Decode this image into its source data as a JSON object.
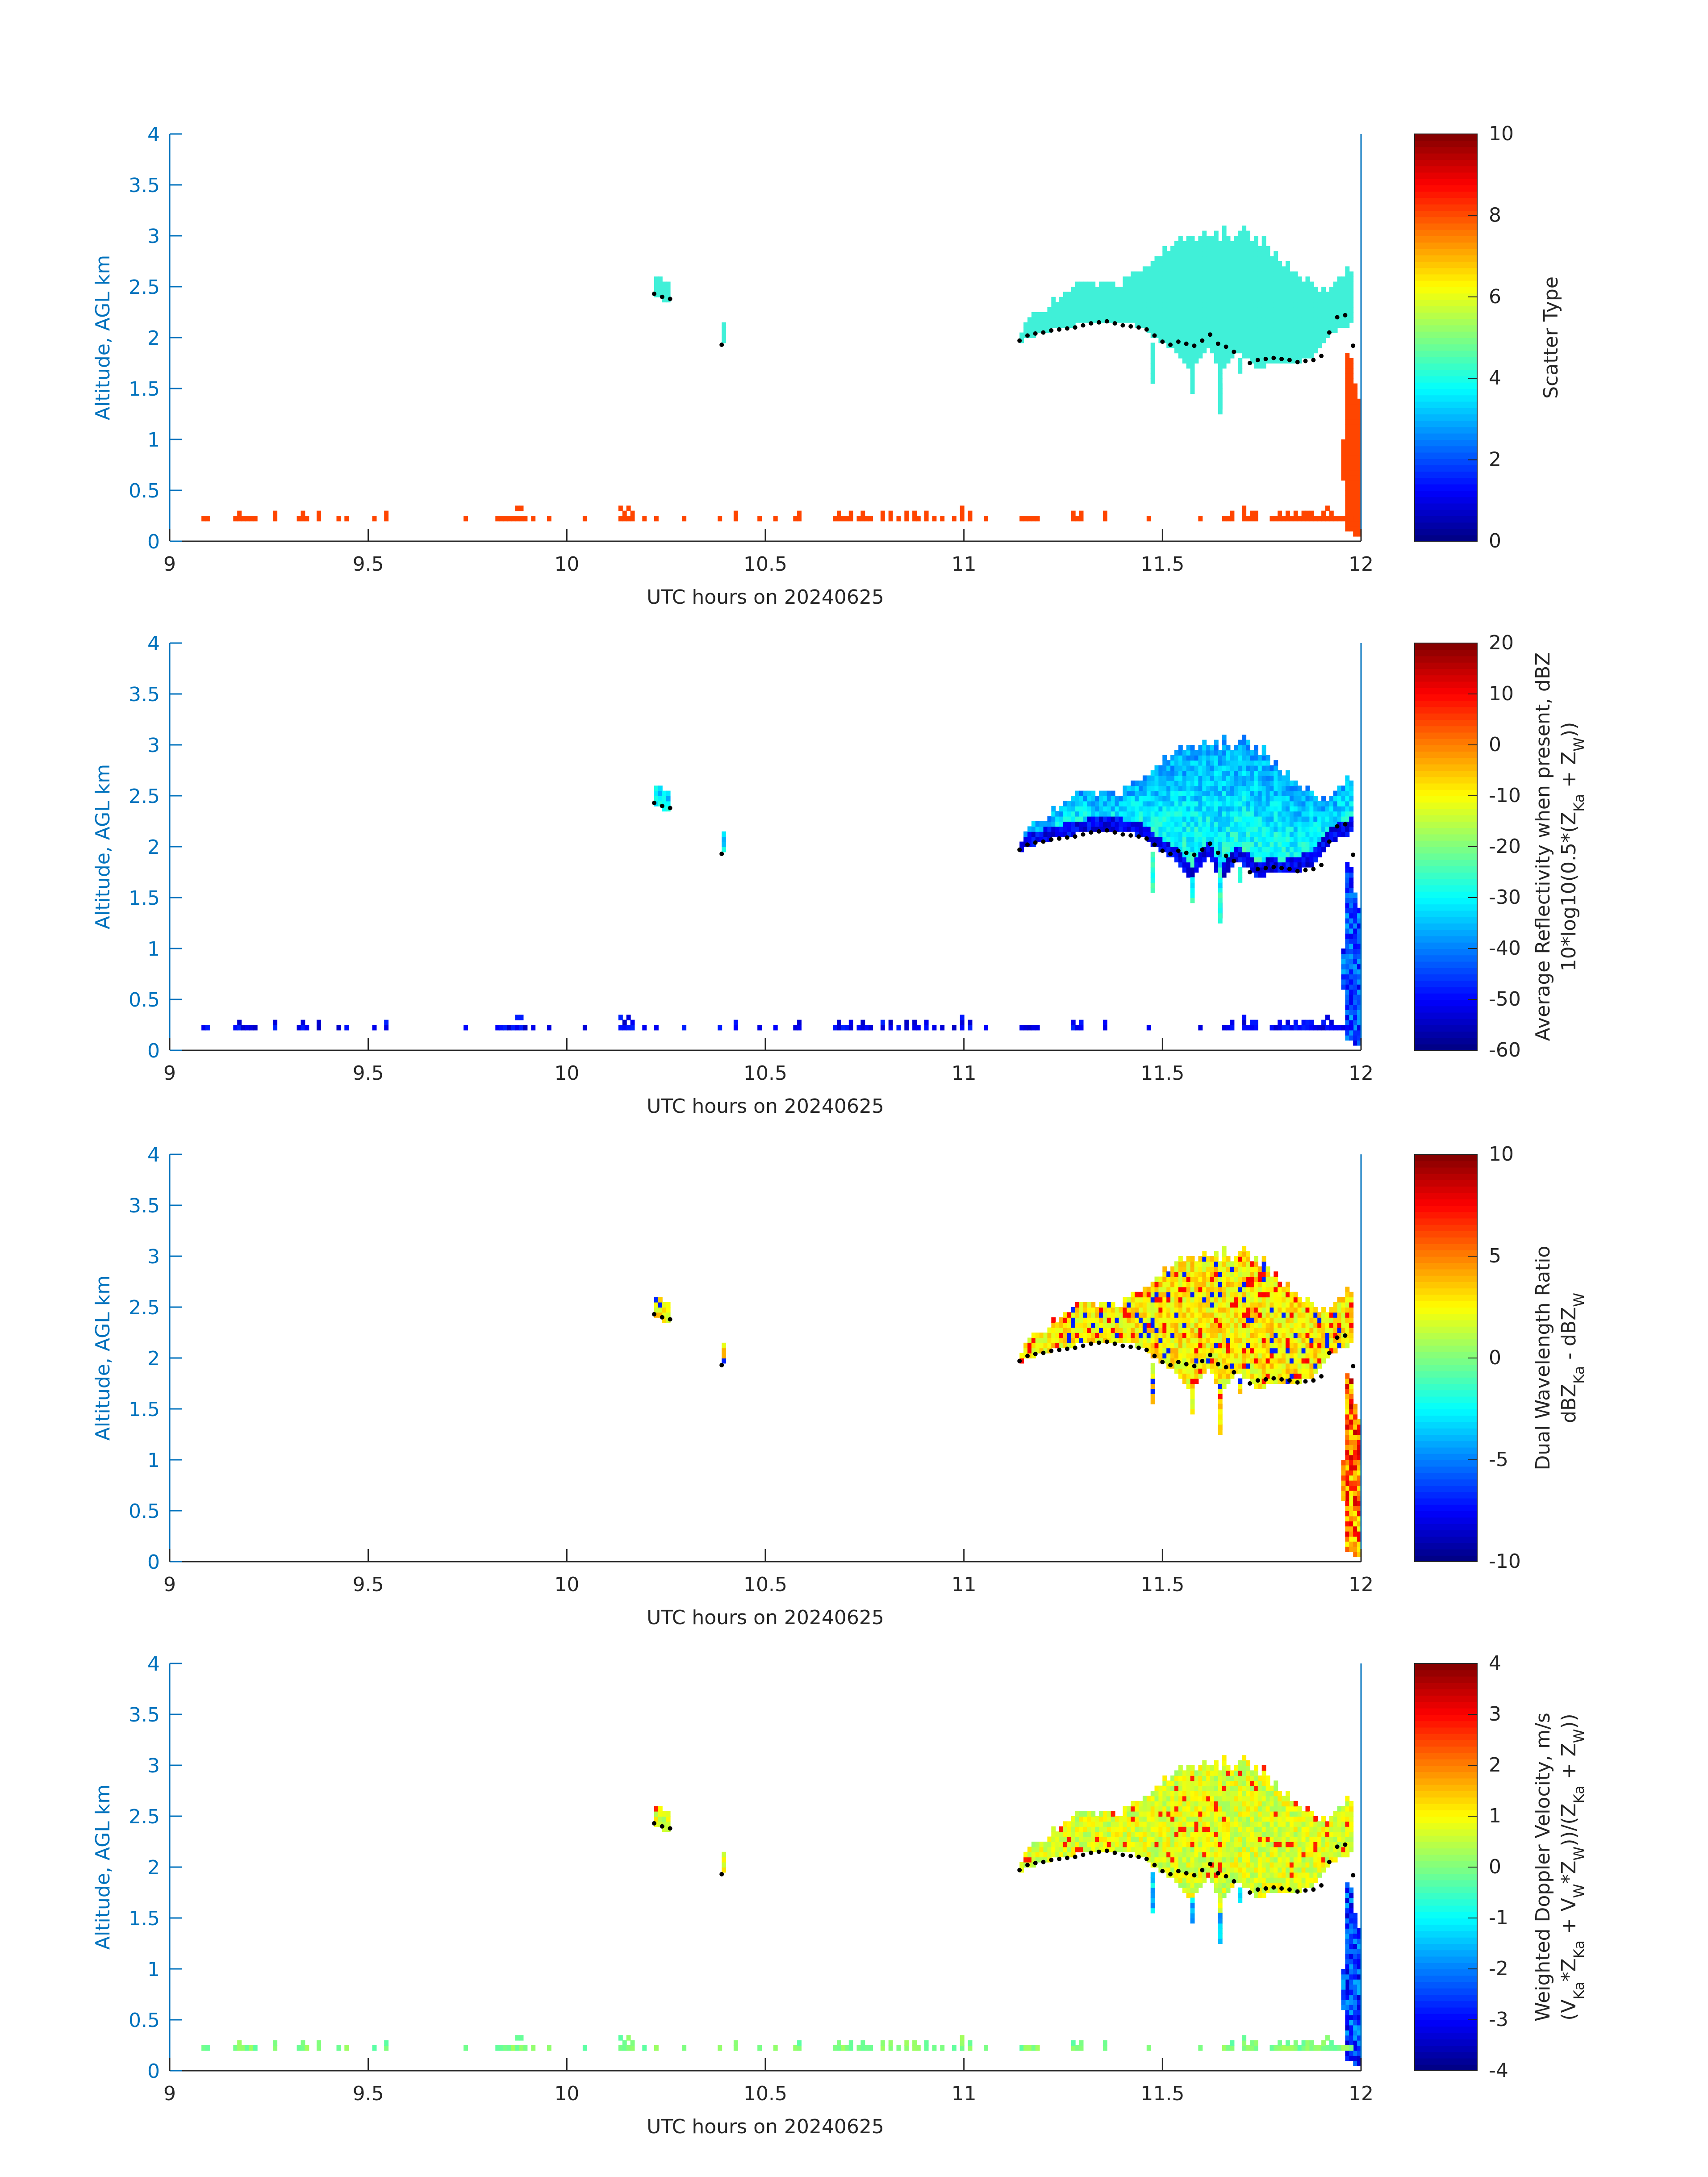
{
  "colors": {
    "axis_blue": "#0072bd",
    "scatter_liquid": "#ff4500",
    "scatter_ice": "#40f0d8",
    "marker": "#000000"
  },
  "colormap": "jet",
  "chart_data": [
    {
      "type": "heatmap",
      "panel": 1,
      "xlabel": "UTC hours on 20240625",
      "ylabel": "Altitude, AGL km",
      "xlim": [
        9,
        12
      ],
      "ylim": [
        0,
        4
      ],
      "xticks": [
        "9",
        "9.5",
        "10",
        "10.5",
        "11",
        "11.5",
        "12"
      ],
      "yticks": [
        "0",
        "0.5",
        "1",
        "1.5",
        "2",
        "2.5",
        "3",
        "3.5",
        "4"
      ],
      "colorbar": {
        "label": "Scatter Type",
        "range": [
          0,
          10
        ],
        "ticks": [
          "0",
          "2",
          "4",
          "6",
          "8",
          "10"
        ]
      },
      "field": "scatter_type"
    },
    {
      "type": "heatmap",
      "panel": 2,
      "xlabel": "UTC hours on 20240625",
      "ylabel": "Altitude, AGL km",
      "xlim": [
        9,
        12
      ],
      "ylim": [
        0,
        4
      ],
      "xticks": [
        "9",
        "9.5",
        "10",
        "10.5",
        "11",
        "11.5",
        "12"
      ],
      "yticks": [
        "0",
        "0.5",
        "1",
        "1.5",
        "2",
        "2.5",
        "3",
        "3.5",
        "4"
      ],
      "colorbar": {
        "label_line1": "Average Reflectivity when present, dBZ",
        "label_line2": "10*log10(0.5*(Z",
        "range": [
          -60,
          20
        ],
        "ticks": [
          "-60",
          "-50",
          "-40",
          "-30",
          "-20",
          "-10",
          "0",
          "10",
          "20"
        ]
      },
      "field": "reflectivity"
    },
    {
      "type": "heatmap",
      "panel": 3,
      "xlabel": "UTC hours on 20240625",
      "ylabel": "Altitude, AGL km",
      "xlim": [
        9,
        12
      ],
      "ylim": [
        0,
        4
      ],
      "xticks": [
        "9",
        "9.5",
        "10",
        "10.5",
        "11",
        "11.5",
        "12"
      ],
      "yticks": [
        "0",
        "0.5",
        "1",
        "1.5",
        "2",
        "2.5",
        "3",
        "3.5",
        "4"
      ],
      "colorbar": {
        "label_line1": "Dual Wavelength Ratio",
        "label_line2": "dBZ",
        "range": [
          -10,
          10
        ],
        "ticks": [
          "-10",
          "-5",
          "0",
          "5",
          "10"
        ]
      },
      "field": "dwr"
    },
    {
      "type": "heatmap",
      "panel": 4,
      "xlabel": "UTC hours on 20240625",
      "ylabel": "Altitude, AGL km",
      "xlim": [
        9,
        12
      ],
      "ylim": [
        0,
        4
      ],
      "xticks": [
        "9",
        "9.5",
        "10",
        "10.5",
        "11",
        "11.5",
        "12"
      ],
      "yticks": [
        "0",
        "0.5",
        "1",
        "1.5",
        "2",
        "2.5",
        "3",
        "3.5",
        "4"
      ],
      "colorbar": {
        "label_line1": "Weighted Doppler Velocity, m/s",
        "label_line2": "(V",
        "range": [
          -4,
          4
        ],
        "ticks": [
          "-4",
          "-3",
          "-2",
          "-1",
          "0",
          "1",
          "2",
          "3",
          "4"
        ]
      },
      "field": "doppler_velocity"
    }
  ],
  "label_parts": {
    "ka": "Ka",
    "w": "W",
    "p2_tail_a": " + Z",
    "p2_tail_b": "))",
    "p3_minus": " - dBZ",
    "p4_a": "*Z",
    "p4_b": " + V",
    "p4_c": "*Z",
    "p4_d": "))/(Z",
    "p4_e": " + Z",
    "p4_f": "))"
  },
  "cloud_data": {
    "dx_hours": 0.01,
    "dy_km": 0.1,
    "cloud_columns": [
      [
        11.14,
        1.95,
        2.05
      ],
      [
        11.15,
        1.97,
        2.1
      ],
      [
        11.16,
        2.0,
        2.15
      ],
      [
        11.17,
        2.0,
        2.2
      ],
      [
        11.18,
        2.02,
        2.2
      ],
      [
        11.19,
        2.02,
        2.2
      ],
      [
        11.2,
        2.05,
        2.2
      ],
      [
        11.21,
        2.05,
        2.25
      ],
      [
        11.22,
        2.08,
        2.35
      ],
      [
        11.23,
        2.08,
        2.3
      ],
      [
        11.24,
        2.08,
        2.35
      ],
      [
        11.25,
        2.1,
        2.4
      ],
      [
        11.26,
        2.1,
        2.4
      ],
      [
        11.27,
        2.1,
        2.45
      ],
      [
        11.28,
        2.12,
        2.5
      ],
      [
        11.29,
        2.12,
        2.5
      ],
      [
        11.3,
        2.12,
        2.5
      ],
      [
        11.31,
        2.14,
        2.5
      ],
      [
        11.32,
        2.14,
        2.5
      ],
      [
        11.33,
        2.15,
        2.45
      ],
      [
        11.34,
        2.15,
        2.5
      ],
      [
        11.35,
        2.15,
        2.5
      ],
      [
        11.36,
        2.15,
        2.5
      ],
      [
        11.37,
        2.15,
        2.5
      ],
      [
        11.38,
        2.15,
        2.45
      ],
      [
        11.39,
        2.15,
        2.45
      ],
      [
        11.4,
        2.12,
        2.55
      ],
      [
        11.41,
        2.12,
        2.55
      ],
      [
        11.42,
        2.12,
        2.6
      ],
      [
        11.43,
        2.1,
        2.6
      ],
      [
        11.44,
        2.1,
        2.6
      ],
      [
        11.45,
        2.08,
        2.65
      ],
      [
        11.46,
        2.05,
        2.65
      ],
      [
        11.47,
        2.0,
        2.7
      ],
      [
        11.48,
        1.98,
        2.75
      ],
      [
        11.49,
        1.95,
        2.75
      ],
      [
        11.5,
        1.92,
        2.85
      ],
      [
        11.51,
        1.9,
        2.8
      ],
      [
        11.52,
        1.88,
        2.85
      ],
      [
        11.53,
        1.85,
        2.9
      ],
      [
        11.54,
        1.8,
        2.95
      ],
      [
        11.55,
        1.75,
        2.9
      ],
      [
        11.56,
        1.7,
        2.95
      ],
      [
        11.57,
        1.65,
        2.95
      ],
      [
        11.58,
        1.75,
        2.9
      ],
      [
        11.59,
        1.8,
        2.95
      ],
      [
        11.6,
        1.85,
        3.0
      ],
      [
        11.61,
        1.9,
        2.95
      ],
      [
        11.62,
        1.85,
        2.95
      ],
      [
        11.63,
        1.75,
        3.0
      ],
      [
        11.64,
        1.3,
        2.9
      ],
      [
        11.65,
        1.7,
        3.05
      ],
      [
        11.66,
        1.75,
        2.95
      ],
      [
        11.67,
        1.8,
        2.9
      ],
      [
        11.68,
        1.85,
        2.95
      ],
      [
        11.69,
        1.85,
        3.0
      ],
      [
        11.7,
        1.8,
        3.05
      ],
      [
        11.71,
        1.8,
        3.0
      ],
      [
        11.72,
        1.75,
        2.9
      ],
      [
        11.73,
        1.7,
        2.95
      ],
      [
        11.74,
        1.7,
        2.85
      ],
      [
        11.75,
        1.7,
        2.95
      ],
      [
        11.76,
        1.75,
        2.85
      ],
      [
        11.77,
        1.75,
        2.75
      ],
      [
        11.78,
        1.75,
        2.8
      ],
      [
        11.79,
        1.72,
        2.7
      ],
      [
        11.8,
        1.72,
        2.65
      ],
      [
        11.81,
        1.75,
        2.7
      ],
      [
        11.82,
        1.75,
        2.6
      ],
      [
        11.83,
        1.75,
        2.6
      ],
      [
        11.84,
        1.75,
        2.55
      ],
      [
        11.85,
        1.78,
        2.5
      ],
      [
        11.86,
        1.78,
        2.55
      ],
      [
        11.87,
        1.8,
        2.5
      ],
      [
        11.88,
        1.85,
        2.45
      ],
      [
        11.89,
        1.9,
        2.4
      ],
      [
        11.9,
        1.95,
        2.45
      ],
      [
        11.91,
        2.0,
        2.4
      ],
      [
        11.92,
        2.05,
        2.45
      ],
      [
        11.93,
        2.05,
        2.5
      ],
      [
        11.94,
        2.1,
        2.55
      ],
      [
        11.95,
        2.1,
        2.55
      ],
      [
        11.96,
        2.1,
        2.65
      ],
      [
        11.97,
        2.15,
        2.6
      ]
    ],
    "gaps": [
      [
        11.47,
        1.55,
        1.95
      ],
      [
        11.57,
        1.45,
        1.7
      ],
      [
        11.64,
        1.25,
        1.55
      ],
      [
        11.69,
        1.65,
        1.8
      ]
    ],
    "curtain": [
      [
        11.96,
        0.1,
        1.85
      ],
      [
        11.97,
        0.1,
        1.8
      ],
      [
        11.98,
        0.05,
        1.55
      ],
      [
        11.99,
        0.05,
        1.4
      ],
      [
        11.95,
        0.6,
        1.0
      ]
    ],
    "top_islands": [
      [
        10.22,
        2.38,
        2.55
      ],
      [
        10.23,
        2.38,
        2.55
      ],
      [
        10.24,
        2.35,
        2.52
      ],
      [
        10.25,
        2.35,
        2.5
      ],
      [
        10.39,
        1.95,
        2.1
      ]
    ],
    "surface_times": [
      9.08,
      9.09,
      9.16,
      9.17,
      9.18,
      9.19,
      9.2,
      9.21,
      9.26,
      9.32,
      9.33,
      9.34,
      9.37,
      9.42,
      9.44,
      9.51,
      9.54,
      9.74,
      9.82,
      9.83,
      9.84,
      9.85,
      9.86,
      9.87,
      9.88,
      9.89,
      9.91,
      9.95,
      10.04,
      10.13,
      10.14,
      10.15,
      10.16,
      10.19,
      10.22,
      10.29,
      10.38,
      10.42,
      10.48,
      10.52,
      10.57,
      10.58,
      10.67,
      10.68,
      10.69,
      10.7,
      10.71,
      10.73,
      10.74,
      10.75,
      10.76,
      10.79,
      10.81,
      10.83,
      10.85,
      10.87,
      10.88,
      10.9,
      10.92,
      10.94,
      10.97,
      10.99,
      11.01,
      11.05,
      11.14,
      11.15,
      11.16,
      11.17,
      11.18,
      11.27,
      11.28,
      11.29,
      11.35,
      11.46,
      11.59,
      11.65,
      11.66,
      11.67,
      11.7,
      11.71,
      11.72,
      11.73,
      11.77,
      11.78,
      11.79,
      11.8,
      11.81,
      11.82,
      11.83,
      11.84,
      11.85,
      11.86,
      11.87,
      11.88,
      11.89,
      11.9,
      11.91,
      11.92,
      11.93,
      11.94,
      11.95,
      11.96,
      11.97
    ],
    "cloud_base_dots": [
      [
        11.14,
        1.97
      ],
      [
        11.16,
        2.02
      ],
      [
        11.18,
        2.04
      ],
      [
        11.2,
        2.05
      ],
      [
        11.22,
        2.07
      ],
      [
        11.24,
        2.08
      ],
      [
        11.26,
        2.09
      ],
      [
        11.28,
        2.1
      ],
      [
        11.3,
        2.12
      ],
      [
        11.32,
        2.14
      ],
      [
        11.34,
        2.15
      ],
      [
        11.36,
        2.16
      ],
      [
        11.38,
        2.14
      ],
      [
        11.4,
        2.12
      ],
      [
        11.42,
        2.11
      ],
      [
        11.44,
        2.1
      ],
      [
        11.46,
        2.08
      ],
      [
        11.48,
        2.02
      ],
      [
        11.5,
        1.96
      ],
      [
        11.52,
        1.93
      ],
      [
        11.54,
        1.96
      ],
      [
        11.56,
        1.94
      ],
      [
        11.58,
        1.92
      ],
      [
        11.6,
        1.97
      ],
      [
        11.62,
        2.03
      ],
      [
        11.64,
        1.94
      ],
      [
        11.66,
        1.91
      ],
      [
        11.68,
        1.86
      ],
      [
        11.72,
        1.75
      ],
      [
        11.74,
        1.78
      ],
      [
        11.76,
        1.79
      ],
      [
        11.78,
        1.8
      ],
      [
        11.8,
        1.79
      ],
      [
        11.82,
        1.78
      ],
      [
        11.84,
        1.76
      ],
      [
        11.86,
        1.77
      ],
      [
        11.88,
        1.78
      ],
      [
        11.9,
        1.82
      ],
      [
        11.92,
        2.05
      ],
      [
        11.94,
        2.2
      ],
      [
        11.96,
        2.22
      ],
      [
        11.98,
        1.92
      ],
      [
        10.22,
        2.43
      ],
      [
        10.24,
        2.4
      ],
      [
        10.26,
        2.38
      ],
      [
        10.39,
        1.93
      ]
    ]
  }
}
